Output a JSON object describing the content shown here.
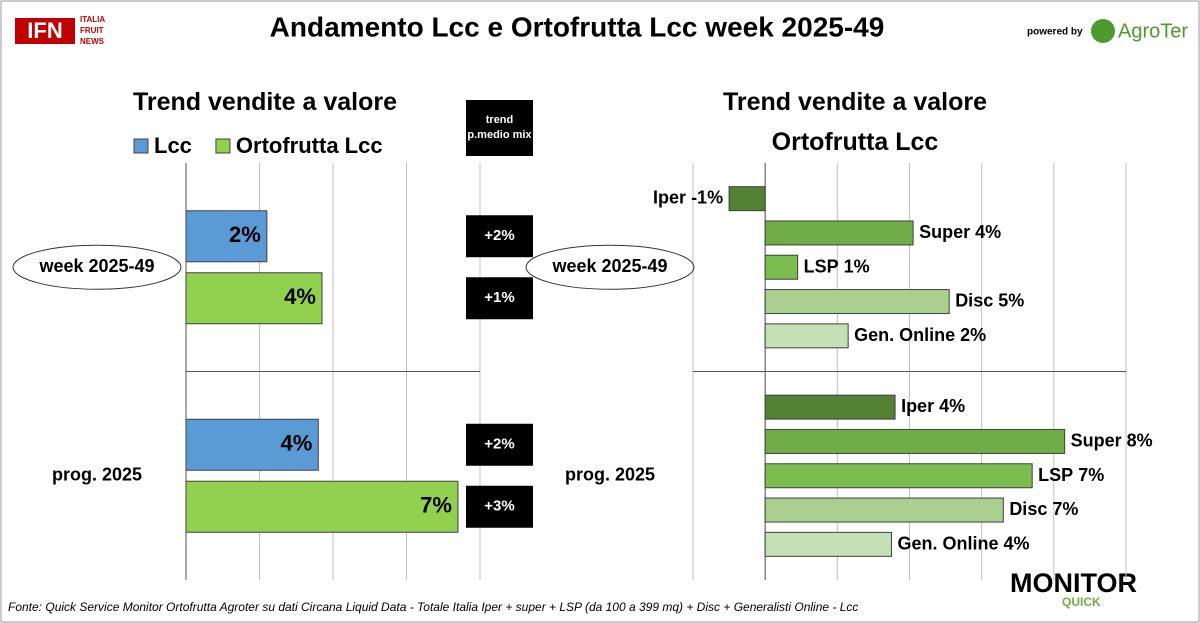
{
  "header": {
    "logo": "IFN",
    "logo_sub": [
      "ITALIA",
      "FRUIT",
      "NEWS"
    ],
    "title": "Andamento Lcc e Ortofrutta Lcc week 2025-49",
    "powered_by": "powered by",
    "brand": "AgroTer"
  },
  "chart_data": [
    {
      "type": "bar",
      "orientation": "horizontal",
      "title": "Trend vendite a valore",
      "categories": [
        "week 2025-49",
        "prog. 2025"
      ],
      "series": [
        {
          "name": "Lcc",
          "color": "#5b9bd5",
          "values": [
            2.2,
            3.6
          ],
          "value_labels": [
            "2%",
            "4%"
          ],
          "mix_values": [
            2,
            2
          ],
          "mix_labels": [
            "+2%",
            "+2%"
          ]
        },
        {
          "name": "Ortofrutta Lcc",
          "color": "#92d050",
          "values": [
            3.7,
            7.4
          ],
          "value_labels": [
            "4%",
            "7%"
          ],
          "mix_values": [
            1,
            3
          ],
          "mix_labels": [
            "+1%",
            "+3%"
          ]
        }
      ],
      "mix_title": "trend p.medio mix",
      "xlim": [
        0,
        8
      ],
      "xticks": [
        0,
        2,
        4,
        6,
        8
      ],
      "grid": true,
      "legend": "top"
    },
    {
      "type": "bar",
      "orientation": "horizontal",
      "title": "Trend vendite a valore Ortofrutta Lcc",
      "categories": [
        "week 2025-49",
        "prog. 2025"
      ],
      "series": [
        {
          "name": "Iper",
          "color": "#548235",
          "values": [
            -1,
            3.6
          ],
          "value_labels": [
            "-1%",
            "4%"
          ]
        },
        {
          "name": "Super",
          "color": "#70ad47",
          "values": [
            4.1,
            8.3
          ],
          "value_labels": [
            "4%",
            "8%"
          ]
        },
        {
          "name": "LSP",
          "color": "#7cbd4f",
          "values": [
            0.9,
            7.4
          ],
          "value_labels": [
            "1%",
            "7%"
          ]
        },
        {
          "name": "Disc",
          "color": "#a9d08e",
          "values": [
            5.1,
            6.6
          ],
          "value_labels": [
            "5%",
            "7%"
          ]
        },
        {
          "name": "Gen. Online",
          "color": "#c5e0b4",
          "values": [
            2.3,
            3.5
          ],
          "value_labels": [
            "2%",
            "4%"
          ]
        }
      ],
      "xlim": [
        -2,
        10
      ],
      "xticks": [
        -2,
        0,
        2,
        4,
        6,
        8,
        10
      ],
      "grid": true,
      "legend": "none"
    }
  ],
  "footer": {
    "source": "Fonte: Quick Service Monitor Ortofrutta Agroter su dati Circana Liquid Data - Totale Italia Iper + super + LSP (da 100 a 399 mq) + Disc + Generalisti Online - Lcc",
    "monitor": "MONITOR",
    "quick": "QUICK"
  }
}
